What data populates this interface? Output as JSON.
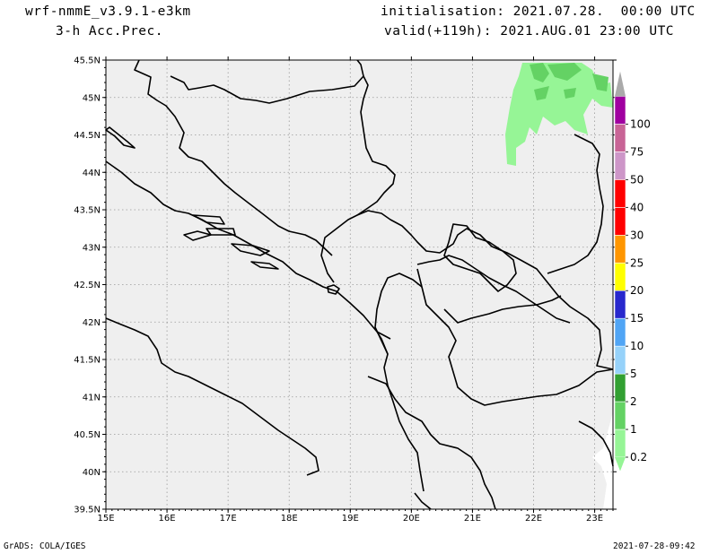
{
  "header": {
    "model": "wrf-nmmE_v3.9.1-e3km",
    "field": "3-h Acc.Prec.",
    "init": "initialisation: 2021.07.28.  00:00 UTC",
    "valid": "valid(+119h): 2021.AUG.01 23:00 UTC"
  },
  "footer": {
    "left": "GrADS: COLA/IGES",
    "right": "2021-07-28-09:42"
  },
  "map": {
    "lat_labels": [
      "45.5N",
      "45N",
      "44.5N",
      "44N",
      "43.5N",
      "43N",
      "42.5N",
      "42N",
      "41.5N",
      "41N",
      "40.5N",
      "40N",
      "39.5N"
    ],
    "lon_labels": [
      "15E",
      "16E",
      "17E",
      "18E",
      "19E",
      "20E",
      "21E",
      "22E",
      "23E"
    ],
    "lat_range": [
      39.5,
      45.5
    ],
    "lon_range": [
      15,
      23.3
    ],
    "land_color": "#efefef",
    "grid": true
  },
  "colorbar": {
    "levels": [
      "0.2",
      "1",
      "2",
      "5",
      "10",
      "15",
      "20",
      "25",
      "30",
      "40",
      "50",
      "75",
      "100"
    ],
    "colors": [
      "#96f596",
      "#64d264",
      "#32a032",
      "#96d2fa",
      "#50a5f5",
      "#2828cd",
      "#ffff00",
      "#ff9600",
      "#ff0000",
      "#ff0000",
      "#cd96c8",
      "#c86496",
      "#a000a0",
      "#aaaaaa"
    ]
  }
}
